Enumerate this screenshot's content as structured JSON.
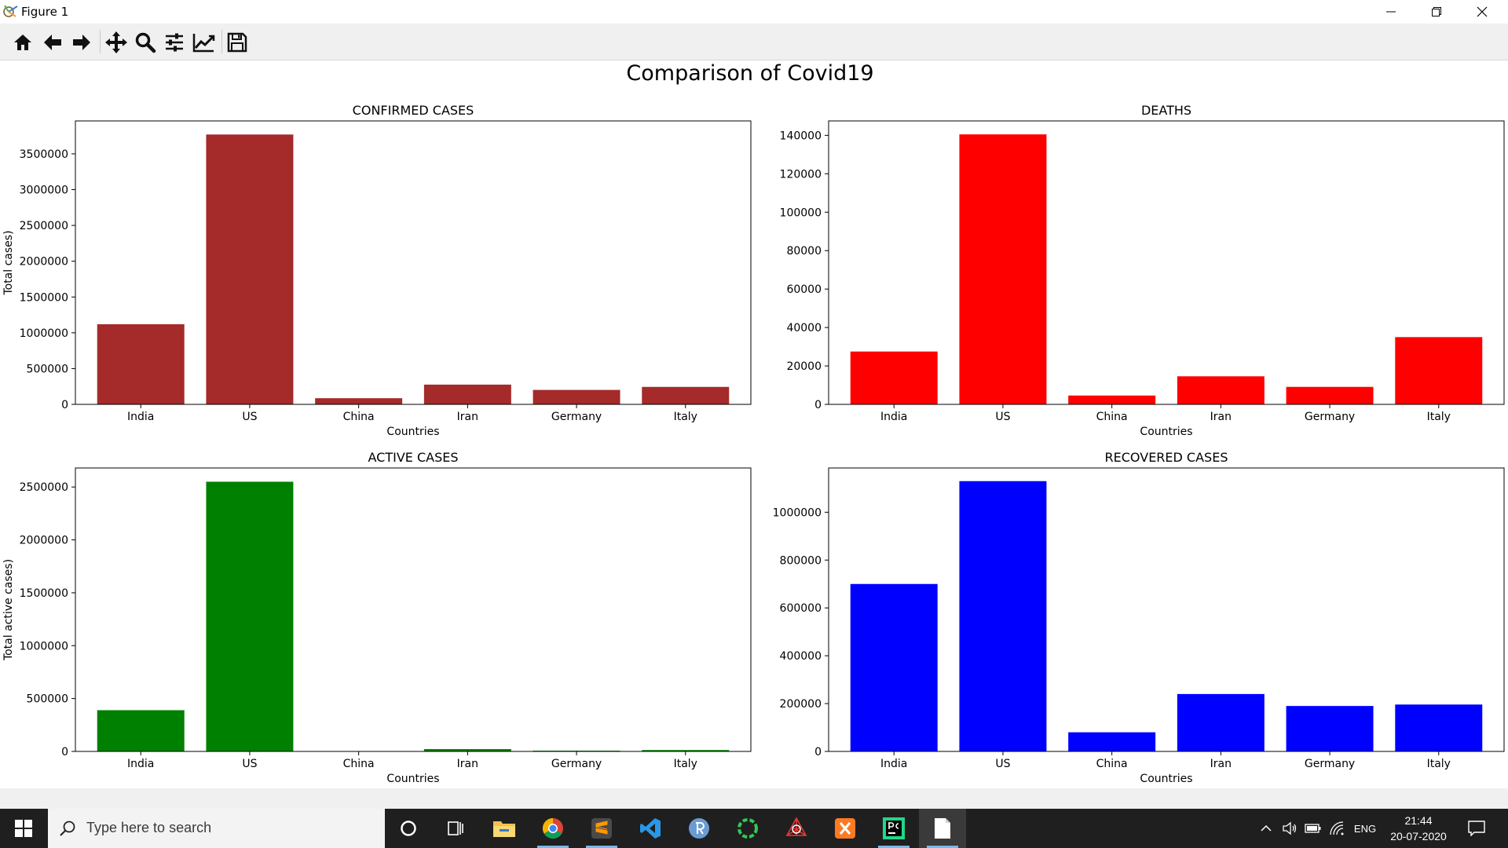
{
  "window": {
    "title": "Figure 1"
  },
  "toolbar": {
    "buttons": [
      "home-icon",
      "back-icon",
      "forward-icon",
      "pan-icon",
      "zoom-icon",
      "configure-subplots-icon",
      "edit-axis-icon",
      "save-icon"
    ]
  },
  "figure": {
    "suptitle": "Comparison of Covid19"
  },
  "chart_data": [
    {
      "type": "bar",
      "title": "CONFIRMED CASES",
      "xlabel": "Countries",
      "ylabel": "Total cases)",
      "categories": [
        "India",
        "US",
        "China",
        "Iran",
        "Germany",
        "Italy"
      ],
      "values": [
        1120000,
        3770000,
        86000,
        276000,
        202000,
        244000
      ],
      "ylim": [
        0,
        3960000
      ],
      "yticks": [
        0,
        500000,
        1000000,
        1500000,
        2000000,
        2500000,
        3000000,
        3500000
      ],
      "color": "#a52a2a"
    },
    {
      "type": "bar",
      "title": "DEATHS",
      "xlabel": "Countries",
      "ylabel": "",
      "categories": [
        "India",
        "US",
        "China",
        "Iran",
        "Germany",
        "Italy"
      ],
      "values": [
        27500,
        140500,
        4600,
        14600,
        9100,
        35000
      ],
      "ylim": [
        0,
        147500
      ],
      "yticks": [
        0,
        20000,
        40000,
        60000,
        80000,
        100000,
        120000,
        140000
      ],
      "color": "#ff0000"
    },
    {
      "type": "bar",
      "title": "ACTIVE CASES",
      "xlabel": "Countries",
      "ylabel": "Total active cases)",
      "categories": [
        "India",
        "US",
        "China",
        "Iran",
        "Germany",
        "Italy"
      ],
      "values": [
        390000,
        2550000,
        1000,
        22000,
        7000,
        13000
      ],
      "ylim": [
        0,
        2680000
      ],
      "yticks": [
        0,
        500000,
        1000000,
        1500000,
        2000000,
        2500000
      ],
      "color": "#008000"
    },
    {
      "type": "bar",
      "title": "RECOVERED CASES",
      "xlabel": "Countries",
      "ylabel": "",
      "categories": [
        "India",
        "US",
        "China",
        "Iran",
        "Germany",
        "Italy"
      ],
      "values": [
        700000,
        1130000,
        80000,
        240000,
        190000,
        196000
      ],
      "ylim": [
        0,
        1185000
      ],
      "yticks": [
        0,
        200000,
        400000,
        600000,
        800000,
        1000000
      ],
      "color": "#0000ff"
    }
  ],
  "taskbar": {
    "search_placeholder": "Type here to search",
    "apps": [
      "cortana-icon",
      "task-view-icon",
      "file-explorer-icon",
      "chrome-icon",
      "sublime-icon",
      "vscode-icon",
      "r-icon",
      "spinner-app-icon",
      "network-tool-icon",
      "xampp-icon",
      "pycharm-icon",
      "notepad-icon"
    ],
    "lang": "ENG",
    "time": "21:44",
    "date": "20-07-2020"
  }
}
